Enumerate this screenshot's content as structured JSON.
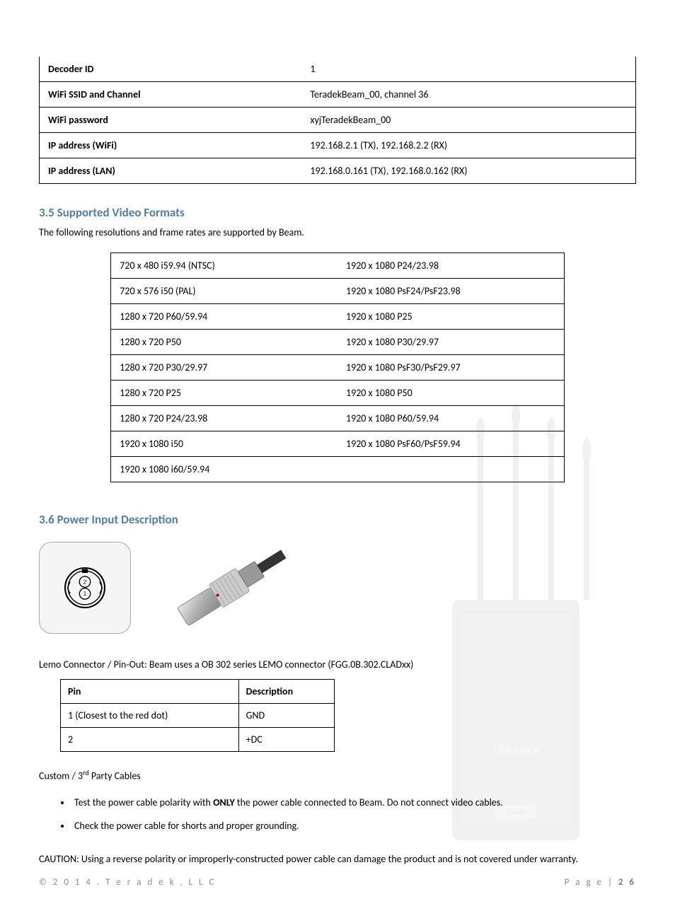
{
  "info_table": {
    "rows": [
      {
        "label": "Decoder ID",
        "value": "1"
      },
      {
        "label": "WiFi SSID and Channel",
        "value": "TeradekBeam_00, channel 36"
      },
      {
        "label": "WiFi password",
        "value": "xyjTeradekBeam_00"
      },
      {
        "label": "IP address (WiFi)",
        "value": "192.168.2.1 (TX), 192.168.2.2 (RX)"
      },
      {
        "label": "IP address (LAN)",
        "value": "192.168.0.161 (TX), 192.168.0.162 (RX)"
      }
    ]
  },
  "section35": {
    "title": "3.5 Supported Video Formats",
    "subtext": "The following resolutions and frame rates are supported by Beam.",
    "title_color": "#4f7fa8",
    "rows": [
      [
        "720 x 480 i59.94 (NTSC)",
        "1920 x 1080 P24/23.98"
      ],
      [
        "720 x 576 i50 (PAL)",
        "1920 x 1080 PsF24/PsF23.98"
      ],
      [
        "1280 x 720 P60/59.94",
        "1920 x 1080 P25"
      ],
      [
        "1280 x 720 P50",
        "1920 x 1080 P30/29.97"
      ],
      [
        "1280 x 720 P30/29.97",
        "1920 x 1080 PsF30/PsF29.97"
      ],
      [
        "1280 x 720 P25",
        "1920 x 1080 P50"
      ],
      [
        "1280 x 720 P24/23.98",
        "1920 x 1080 P60/59.94"
      ],
      [
        "1920 x 1080 i50",
        "1920 x 1080 PsF60/PsF59.94"
      ],
      [
        "1920 x 1080 i60/59.94",
        ""
      ]
    ]
  },
  "section36": {
    "title": "3.6 Power Input Description",
    "title_color": "#4f7fa8",
    "connector_text": "Lemo Connector / Pin-Out: Beam uses a OB 302 series LEMO connector (FGG.0B.302.CLADxx)",
    "pin_table": {
      "headers": [
        "Pin",
        "Description"
      ],
      "rows": [
        [
          "1 (Closest to the red dot)",
          "GND"
        ],
        [
          "2",
          "+DC"
        ]
      ],
      "col_widths": [
        "55%",
        "45%"
      ]
    },
    "custom_heading_pre": "Custom / 3",
    "custom_heading_sup": "rd",
    "custom_heading_post": " Party Cables",
    "bullets": [
      {
        "pre": "Test the power cable polarity with ",
        "bold": "ONLY",
        "post": " the power cable connected to Beam. Do not connect video cables."
      },
      {
        "pre": "Check the power cable for shorts and proper grounding.",
        "bold": "",
        "post": ""
      }
    ],
    "caution": "CAUTION: Using a reverse polarity or improperly-constructed power cable can damage the product and is not covered under warranty."
  },
  "footer": {
    "copyright": "© 2 0 1 4 .   T e r a d e k , L L C",
    "page_label": "P a g e   |  ",
    "page_num": "2 6"
  },
  "pinout_diagram": {
    "pin_labels": [
      "2",
      "1"
    ],
    "outer_stroke": "#000",
    "inner_fill": "#fff"
  }
}
